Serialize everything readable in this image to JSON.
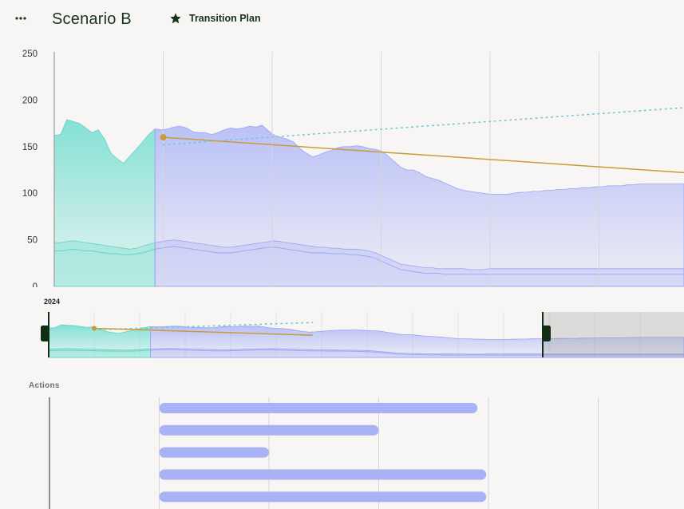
{
  "header": {
    "menu_icon": "ellipsis-icon",
    "title": "Scenario B",
    "plan_icon": "star-icon",
    "plan_label": "Transition Plan"
  },
  "navigator": {
    "year_label": "2024"
  },
  "actions": {
    "label": "Actions",
    "bars": [
      {
        "start": 1.0,
        "end": 3.9
      },
      {
        "start": 1.0,
        "end": 3.0
      },
      {
        "start": 1.0,
        "end": 2.0
      },
      {
        "start": 1.0,
        "end": 3.98
      },
      {
        "start": 1.0,
        "end": 3.98
      }
    ]
  },
  "colors": {
    "background": "#f8f6f5",
    "historical": "#7fe0d3",
    "projection": "#aab3f6",
    "trend": "#c99a3c",
    "target": "#6fc9cf",
    "handle": "#0f2e14"
  },
  "chart_data": {
    "type": "area",
    "title": "",
    "xlabel": "",
    "ylabel": "",
    "ylim": [
      0,
      250
    ],
    "yticks": [
      "250",
      "200",
      "150",
      "100",
      "50",
      "0"
    ],
    "grid": "vertical",
    "historical_end_index": 16,
    "series": [
      {
        "name": "",
        "kind": "upper-band",
        "values": [
          162,
          163,
          179,
          177,
          175,
          170,
          165,
          168,
          158,
          143,
          137,
          132,
          140,
          147,
          155,
          163,
          169,
          168,
          169,
          171,
          172,
          170,
          166,
          165,
          165,
          163,
          165,
          168,
          170,
          169,
          170,
          172,
          171,
          173,
          167,
          162,
          160,
          158,
          155,
          148,
          143,
          139,
          141,
          144,
          146,
          149,
          150,
          150,
          151,
          150,
          148,
          147,
          145,
          140,
          134,
          128,
          125,
          125,
          122,
          118,
          116,
          114,
          111,
          108,
          105,
          103,
          102,
          101,
          100,
          99,
          99,
          99,
          99,
          100,
          101,
          101,
          102,
          102,
          103,
          103,
          104,
          104,
          105,
          105,
          106,
          106,
          107,
          107,
          108,
          108,
          108,
          109,
          109,
          110,
          110,
          110,
          110,
          110,
          110,
          110,
          110
        ]
      },
      {
        "name": "",
        "kind": "lower-band-upper",
        "values": [
          47,
          47,
          48,
          49,
          48,
          47,
          46,
          45,
          44,
          43,
          42,
          41,
          40,
          41,
          43,
          45,
          47,
          48,
          49,
          50,
          49,
          48,
          47,
          46,
          45,
          44,
          43,
          42,
          42,
          43,
          44,
          45,
          46,
          47,
          48,
          49,
          48,
          47,
          46,
          45,
          44,
          43,
          42,
          42,
          41,
          41,
          40,
          40,
          40,
          39,
          38,
          36,
          33,
          30,
          27,
          24,
          23,
          22,
          21,
          20,
          20,
          19,
          19,
          19,
          19,
          19,
          18,
          18,
          18,
          19,
          19,
          19,
          19,
          19,
          19,
          19,
          19,
          19,
          19,
          19,
          19,
          19,
          19,
          19,
          19,
          19,
          19,
          19,
          19,
          19,
          19,
          19,
          19,
          19,
          19,
          19,
          19,
          19,
          19,
          19,
          19
        ]
      },
      {
        "name": "",
        "kind": "lower-band-lower",
        "values": [
          38,
          38,
          39,
          40,
          39,
          38,
          38,
          37,
          36,
          35,
          35,
          34,
          34,
          35,
          36,
          38,
          40,
          41,
          42,
          43,
          42,
          41,
          40,
          39,
          38,
          37,
          36,
          36,
          36,
          37,
          38,
          39,
          40,
          41,
          42,
          42,
          41,
          40,
          39,
          38,
          37,
          36,
          36,
          36,
          35,
          35,
          35,
          34,
          34,
          33,
          32,
          30,
          27,
          24,
          21,
          18,
          17,
          16,
          15,
          14,
          14,
          14,
          13,
          13,
          13,
          13,
          13,
          13,
          13,
          13,
          13,
          13,
          13,
          13,
          13,
          13,
          13,
          13,
          13,
          13,
          13,
          13,
          13,
          13,
          13,
          13,
          13,
          13,
          13,
          13,
          13,
          13,
          13,
          13,
          13,
          13,
          13,
          13,
          13,
          13,
          13
        ]
      }
    ],
    "trend_line": {
      "start": [
        1.0,
        160
      ],
      "end": [
        5.8,
        122
      ]
    },
    "target_line": {
      "start": [
        1.0,
        152
      ],
      "end": [
        5.8,
        192
      ]
    }
  }
}
